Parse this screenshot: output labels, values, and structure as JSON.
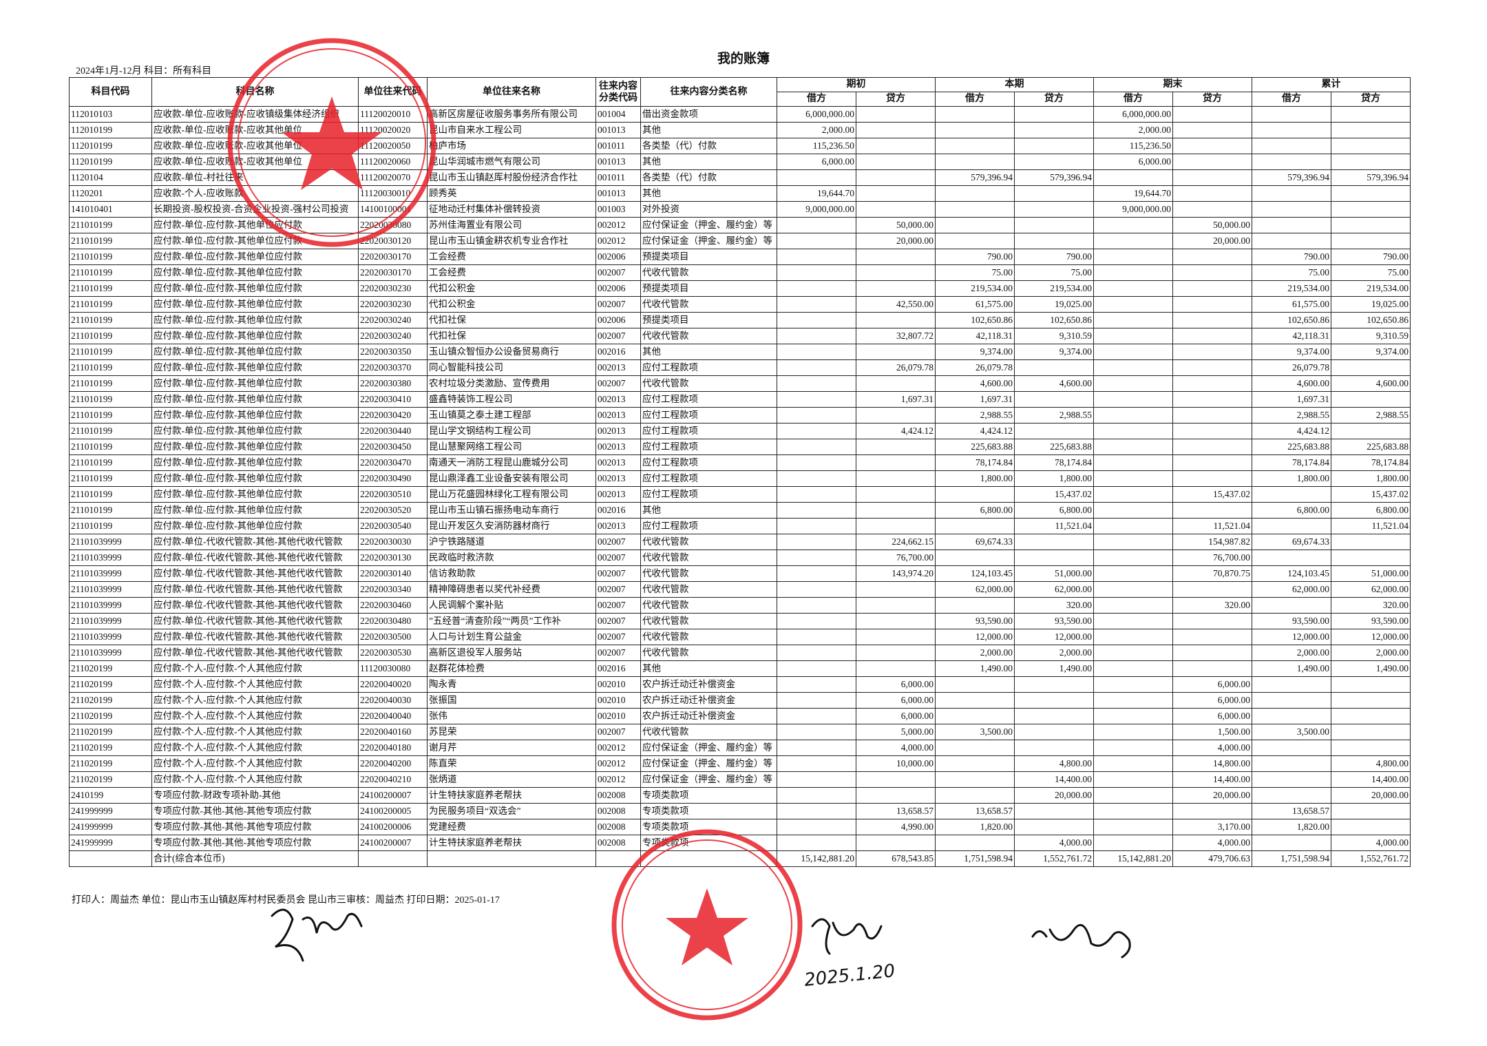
{
  "title": "我的账簿",
  "subtitle": "2024年1月-12月   科目：所有科目",
  "headers": {
    "subject_code": "科目代码",
    "subject_name": "科目名称",
    "unit_code": "单位往来代码",
    "unit_name": "单位往来名称",
    "cat_code": "往来内容分类代码",
    "cat_name": "往来内容分类名称",
    "groups": [
      "期初",
      "本期",
      "期末",
      "累计"
    ],
    "debit": "借方",
    "credit": "贷方"
  },
  "rows": [
    [
      "112010103",
      "应收款-单位-应收账款-应收镇级集体经济组织",
      "11120020010",
      "高新区房屋征收服务事务所有限公司",
      "001004",
      "借出资金款项",
      "6,000,000.00",
      "",
      "",
      "",
      "6,000,000.00",
      "",
      "",
      ""
    ],
    [
      "112010199",
      "应收款-单位-应收账款-应收其他单位",
      "11120020020",
      "昆山市自来水工程公司",
      "001013",
      "其他",
      "2,000.00",
      "",
      "",
      "",
      "2,000.00",
      "",
      "",
      ""
    ],
    [
      "112010199",
      "应收款-单位-应收账款-应收其他单位",
      "11120020050",
      "柏庐市场",
      "001011",
      "各类垫（代）付款",
      "115,236.50",
      "",
      "",
      "",
      "115,236.50",
      "",
      "",
      ""
    ],
    [
      "112010199",
      "应收款-单位-应收账款-应收其他单位",
      "11120020060",
      "昆山华润城市燃气有限公司",
      "001013",
      "其他",
      "6,000.00",
      "",
      "",
      "",
      "6,000.00",
      "",
      "",
      ""
    ],
    [
      "1120104",
      "应收款-单位-村社往来",
      "11120020070",
      "昆山市玉山镇赵厍村股份经济合作社",
      "001011",
      "各类垫（代）付款",
      "",
      "",
      "579,396.94",
      "579,396.94",
      "",
      "",
      "579,396.94",
      "579,396.94"
    ],
    [
      "1120201",
      "应收款-个人-应收账款",
      "11120030010",
      "顾秀英",
      "001013",
      "其他",
      "19,644.70",
      "",
      "",
      "",
      "19,644.70",
      "",
      "",
      ""
    ],
    [
      "141010401",
      "长期投资-股权投资-合资企业投资-强村公司投资",
      "14100100001",
      "征地动迁村集体补偿转投资",
      "001003",
      "对外投资",
      "9,000,000.00",
      "",
      "",
      "",
      "9,000,000.00",
      "",
      "",
      ""
    ],
    [
      "211010199",
      "应付款-单位-应付款-其他单位应付款",
      "22020030080",
      "苏州佳海置业有限公司",
      "002012",
      "应付保证金（押金、履约金）等",
      "",
      "50,000.00",
      "",
      "",
      "",
      "50,000.00",
      "",
      ""
    ],
    [
      "211010199",
      "应付款-单位-应付款-其他单位应付款",
      "22020030120",
      "昆山市玉山镇金耕农机专业合作社",
      "002012",
      "应付保证金（押金、履约金）等",
      "",
      "20,000.00",
      "",
      "",
      "",
      "20,000.00",
      "",
      ""
    ],
    [
      "211010199",
      "应付款-单位-应付款-其他单位应付款",
      "22020030170",
      "工会经费",
      "002006",
      "预提类项目",
      "",
      "",
      "790.00",
      "790.00",
      "",
      "",
      "790.00",
      "790.00"
    ],
    [
      "211010199",
      "应付款-单位-应付款-其他单位应付款",
      "22020030170",
      "工会经费",
      "002007",
      "代收代管款",
      "",
      "",
      "75.00",
      "75.00",
      "",
      "",
      "75.00",
      "75.00"
    ],
    [
      "211010199",
      "应付款-单位-应付款-其他单位应付款",
      "22020030230",
      "代扣公积金",
      "002006",
      "预提类项目",
      "",
      "",
      "219,534.00",
      "219,534.00",
      "",
      "",
      "219,534.00",
      "219,534.00"
    ],
    [
      "211010199",
      "应付款-单位-应付款-其他单位应付款",
      "22020030230",
      "代扣公积金",
      "002007",
      "代收代管款",
      "",
      "42,550.00",
      "61,575.00",
      "19,025.00",
      "",
      "",
      "61,575.00",
      "19,025.00"
    ],
    [
      "211010199",
      "应付款-单位-应付款-其他单位应付款",
      "22020030240",
      "代扣社保",
      "002006",
      "预提类项目",
      "",
      "",
      "102,650.86",
      "102,650.86",
      "",
      "",
      "102,650.86",
      "102,650.86"
    ],
    [
      "211010199",
      "应付款-单位-应付款-其他单位应付款",
      "22020030240",
      "代扣社保",
      "002007",
      "代收代管款",
      "",
      "32,807.72",
      "42,118.31",
      "9,310.59",
      "",
      "",
      "42,118.31",
      "9,310.59"
    ],
    [
      "211010199",
      "应付款-单位-应付款-其他单位应付款",
      "22020030350",
      "玉山镇众智恒办公设备贸易商行",
      "002016",
      "其他",
      "",
      "",
      "9,374.00",
      "9,374.00",
      "",
      "",
      "9,374.00",
      "9,374.00"
    ],
    [
      "211010199",
      "应付款-单位-应付款-其他单位应付款",
      "22020030370",
      "同心智能科技公司",
      "002013",
      "应付工程款项",
      "",
      "26,079.78",
      "26,079.78",
      "",
      "",
      "",
      "26,079.78",
      ""
    ],
    [
      "211010199",
      "应付款-单位-应付款-其他单位应付款",
      "22020030380",
      "农村垃圾分类激励、宣传费用",
      "002007",
      "代收代管款",
      "",
      "",
      "4,600.00",
      "4,600.00",
      "",
      "",
      "4,600.00",
      "4,600.00"
    ],
    [
      "211010199",
      "应付款-单位-应付款-其他单位应付款",
      "22020030410",
      "盛鑫特装饰工程公司",
      "002013",
      "应付工程款项",
      "",
      "1,697.31",
      "1,697.31",
      "",
      "",
      "",
      "1,697.31",
      ""
    ],
    [
      "211010199",
      "应付款-单位-应付款-其他单位应付款",
      "22020030420",
      "玉山镇莫之泰土建工程部",
      "002013",
      "应付工程款项",
      "",
      "",
      "2,988.55",
      "2,988.55",
      "",
      "",
      "2,988.55",
      "2,988.55"
    ],
    [
      "211010199",
      "应付款-单位-应付款-其他单位应付款",
      "22020030440",
      "昆山学文钢结构工程公司",
      "002013",
      "应付工程款项",
      "",
      "4,424.12",
      "4,424.12",
      "",
      "",
      "",
      "4,424.12",
      ""
    ],
    [
      "211010199",
      "应付款-单位-应付款-其他单位应付款",
      "22020030450",
      "昆山慧聚网络工程公司",
      "002013",
      "应付工程款项",
      "",
      "",
      "225,683.88",
      "225,683.88",
      "",
      "",
      "225,683.88",
      "225,683.88"
    ],
    [
      "211010199",
      "应付款-单位-应付款-其他单位应付款",
      "22020030470",
      "南通天一消防工程昆山鹿城分公司",
      "002013",
      "应付工程款项",
      "",
      "",
      "78,174.84",
      "78,174.84",
      "",
      "",
      "78,174.84",
      "78,174.84"
    ],
    [
      "211010199",
      "应付款-单位-应付款-其他单位应付款",
      "22020030490",
      "昆山鼎泽鑫工业设备安装有限公司",
      "002013",
      "应付工程款项",
      "",
      "",
      "1,800.00",
      "1,800.00",
      "",
      "",
      "1,800.00",
      "1,800.00"
    ],
    [
      "211010199",
      "应付款-单位-应付款-其他单位应付款",
      "22020030510",
      "昆山万花盛园林绿化工程有限公司",
      "002013",
      "应付工程款项",
      "",
      "",
      "",
      "15,437.02",
      "",
      "15,437.02",
      "",
      "15,437.02"
    ],
    [
      "211010199",
      "应付款-单位-应付款-其他单位应付款",
      "22020030520",
      "昆山市玉山镇石振扬电动车商行",
      "002016",
      "其他",
      "",
      "",
      "6,800.00",
      "6,800.00",
      "",
      "",
      "6,800.00",
      "6,800.00"
    ],
    [
      "211010199",
      "应付款-单位-应付款-其他单位应付款",
      "22020030540",
      "昆山开发区久安消防器材商行",
      "002013",
      "应付工程款项",
      "",
      "",
      "",
      "11,521.04",
      "",
      "11,521.04",
      "",
      "11,521.04"
    ],
    [
      "21101039999",
      "应付款-单位-代收代管款-其他-其他代收代管款",
      "22020030030",
      "沪宁铁路隧道",
      "002007",
      "代收代管款",
      "",
      "224,662.15",
      "69,674.33",
      "",
      "",
      "154,987.82",
      "69,674.33",
      ""
    ],
    [
      "21101039999",
      "应付款-单位-代收代管款-其他-其他代收代管款",
      "22020030130",
      "民政临时救济款",
      "002007",
      "代收代管款",
      "",
      "76,700.00",
      "",
      "",
      "",
      "76,700.00",
      "",
      ""
    ],
    [
      "21101039999",
      "应付款-单位-代收代管款-其他-其他代收代管款",
      "22020030140",
      "信访救助款",
      "002007",
      "代收代管款",
      "",
      "143,974.20",
      "124,103.45",
      "51,000.00",
      "",
      "70,870.75",
      "124,103.45",
      "51,000.00"
    ],
    [
      "21101039999",
      "应付款-单位-代收代管款-其他-其他代收代管款",
      "22020030340",
      "精神障碍患者以奖代补经费",
      "002007",
      "代收代管款",
      "",
      "",
      "62,000.00",
      "62,000.00",
      "",
      "",
      "62,000.00",
      "62,000.00"
    ],
    [
      "21101039999",
      "应付款-单位-代收代管款-其他-其他代收代管款",
      "22020030460",
      "人民调解个案补贴",
      "002007",
      "代收代管款",
      "",
      "",
      "",
      "320.00",
      "",
      "320.00",
      "",
      "320.00"
    ],
    [
      "21101039999",
      "应付款-单位-代收代管款-其他-其他代收代管款",
      "22020030480",
      "”五经普“清查阶段”“两员”工作补",
      "002007",
      "代收代管款",
      "",
      "",
      "93,590.00",
      "93,590.00",
      "",
      "",
      "93,590.00",
      "93,590.00"
    ],
    [
      "21101039999",
      "应付款-单位-代收代管款-其他-其他代收代管款",
      "22020030500",
      "人口与计划生育公益金",
      "002007",
      "代收代管款",
      "",
      "",
      "12,000.00",
      "12,000.00",
      "",
      "",
      "12,000.00",
      "12,000.00"
    ],
    [
      "21101039999",
      "应付款-单位-代收代管款-其他-其他代收代管款",
      "22020030530",
      "高新区退役军人服务站",
      "002007",
      "代收代管款",
      "",
      "",
      "2,000.00",
      "2,000.00",
      "",
      "",
      "2,000.00",
      "2,000.00"
    ],
    [
      "211020199",
      "应付款-个人-应付款-个人其他应付款",
      "11120030080",
      "赵群花体检费",
      "002016",
      "其他",
      "",
      "",
      "1,490.00",
      "1,490.00",
      "",
      "",
      "1,490.00",
      "1,490.00"
    ],
    [
      "211020199",
      "应付款-个人-应付款-个人其他应付款",
      "22020040020",
      "陶永青",
      "002010",
      "农户拆迁动迁补偿资金",
      "",
      "6,000.00",
      "",
      "",
      "",
      "6,000.00",
      "",
      ""
    ],
    [
      "211020199",
      "应付款-个人-应付款-个人其他应付款",
      "22020040030",
      "张振国",
      "002010",
      "农户拆迁动迁补偿资金",
      "",
      "6,000.00",
      "",
      "",
      "",
      "6,000.00",
      "",
      ""
    ],
    [
      "211020199",
      "应付款-个人-应付款-个人其他应付款",
      "22020040040",
      "张伟",
      "002010",
      "农户拆迁动迁补偿资金",
      "",
      "6,000.00",
      "",
      "",
      "",
      "6,000.00",
      "",
      ""
    ],
    [
      "211020199",
      "应付款-个人-应付款-个人其他应付款",
      "22020040160",
      "苏昆荣",
      "002007",
      "代收代管款",
      "",
      "5,000.00",
      "3,500.00",
      "",
      "",
      "1,500.00",
      "3,500.00",
      ""
    ],
    [
      "211020199",
      "应付款-个人-应付款-个人其他应付款",
      "22020040180",
      "谢月芹",
      "002012",
      "应付保证金（押金、履约金）等",
      "",
      "4,000.00",
      "",
      "",
      "",
      "4,000.00",
      "",
      ""
    ],
    [
      "211020199",
      "应付款-个人-应付款-个人其他应付款",
      "22020040200",
      "陈直荣",
      "002012",
      "应付保证金（押金、履约金）等",
      "",
      "10,000.00",
      "",
      "4,800.00",
      "",
      "14,800.00",
      "",
      "4,800.00"
    ],
    [
      "211020199",
      "应付款-个人-应付款-个人其他应付款",
      "22020040210",
      "张炳道",
      "002012",
      "应付保证金（押金、履约金）等",
      "",
      "",
      "",
      "14,400.00",
      "",
      "14,400.00",
      "",
      "14,400.00"
    ],
    [
      "2410199",
      "专项应付款-财政专项补助-其他",
      "24100200007",
      "计生特扶家庭养老帮扶",
      "002008",
      "专项类款项",
      "",
      "",
      "",
      "20,000.00",
      "",
      "20,000.00",
      "",
      "20,000.00"
    ],
    [
      "241999999",
      "专项应付款-其他-其他-其他专项应付款",
      "24100200005",
      "为民服务项目“双选会”",
      "002008",
      "专项类款项",
      "",
      "13,658.57",
      "13,658.57",
      "",
      "",
      "",
      "13,658.57",
      ""
    ],
    [
      "241999999",
      "专项应付款-其他-其他-其他专项应付款",
      "24100200006",
      "党建经费",
      "002008",
      "专项类款项",
      "",
      "4,990.00",
      "1,820.00",
      "",
      "",
      "3,170.00",
      "1,820.00",
      ""
    ],
    [
      "241999999",
      "专项应付款-其他-其他-其他专项应付款",
      "24100200007",
      "计生特扶家庭养老帮扶",
      "002008",
      "专项类款项",
      "",
      "",
      "",
      "4,000.00",
      "",
      "4,000.00",
      "",
      "4,000.00"
    ]
  ],
  "total": {
    "label": "合计(综合本位币)",
    "values": [
      "15,142,881.20",
      "678,543.85",
      "1,751,598.94",
      "1,552,761.72",
      "15,142,881.20",
      "479,706.63",
      "1,751,598.94",
      "1,552,761.72"
    ]
  },
  "footer": "打印人：周益杰   单位：昆山市玉山镇赵厍村村民委员会  昆山市三审核：周益杰   打印日期：2025-01-17",
  "stamps": {
    "stamp1": {
      "text": "昆山市玉山镇赵厍村村民委员会",
      "number": "3205830514262",
      "color": "#e8202a"
    },
    "stamp2": {
      "text": "昆山市玉山镇赵厍村村务监督委员会",
      "number": "3205830514640",
      "color": "#e8202a"
    }
  },
  "signatures": {
    "date": "2025.1.20"
  }
}
